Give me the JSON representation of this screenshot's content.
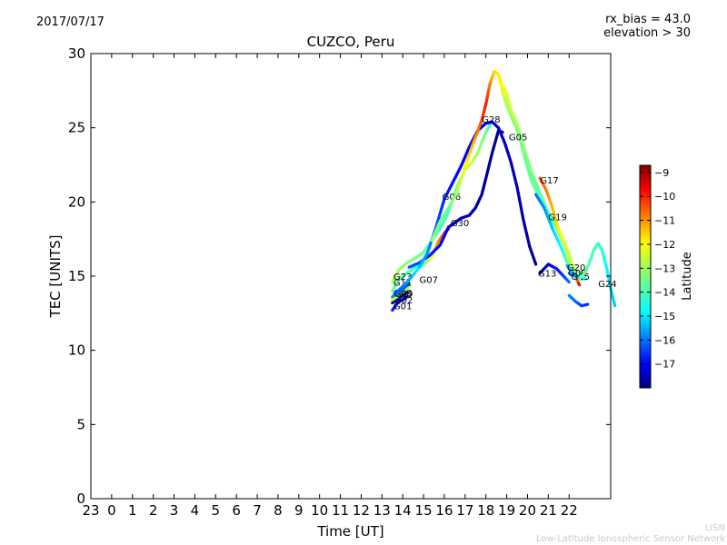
{
  "header": {
    "date": "2017/07/17",
    "rx_bias": "rx_bias = 43.0",
    "elevation": "elevation > 30"
  },
  "footer": {
    "credit_short": "LISN",
    "credit_long": "Low-Latitude Ionospheric Sensor Network"
  },
  "chart_data": {
    "type": "scatter",
    "title": "CUZCO, Peru",
    "xlabel": "Time [UT]",
    "ylabel": "TEC [UNITS]",
    "x_tick_labels": [
      "23",
      "0",
      "1",
      "2",
      "3",
      "4",
      "5",
      "6",
      "7",
      "8",
      "9",
      "10",
      "11",
      "12",
      "13",
      "14",
      "15",
      "16",
      "17",
      "18",
      "19",
      "20",
      "21",
      "22"
    ],
    "xlim": [
      -1,
      24
    ],
    "ylim": [
      0,
      30
    ],
    "y_ticks": [
      0,
      5,
      10,
      15,
      20,
      25,
      30
    ],
    "grid": false,
    "colorbar": {
      "label": "Latitude",
      "range": [
        -18,
        -8.7
      ],
      "ticks": [
        -9,
        -10,
        -11,
        -12,
        -13,
        -14,
        -15,
        -16,
        -17
      ],
      "colormap": "jet"
    },
    "series": [
      {
        "name": "G01",
        "label_x": 13.55,
        "label_y": 13.0,
        "points": [
          [
            13.5,
            12.7
          ],
          [
            13.8,
            13.3
          ],
          [
            14.0,
            13.4
          ],
          [
            14.2,
            13.6
          ]
        ],
        "lats": [
          -16.5,
          -16.8,
          -17.0,
          -17.2
        ]
      },
      {
        "name": "G02",
        "label_x": 13.6,
        "label_y": 13.4,
        "points": [
          [
            13.5,
            13.2
          ],
          [
            13.8,
            13.5
          ],
          [
            14.2,
            13.9
          ]
        ],
        "lats": [
          -17.6,
          -17.7,
          -17.8
        ]
      },
      {
        "name": "G08",
        "label_x": 13.55,
        "label_y": 13.9,
        "points": [
          [
            13.5,
            13.4
          ],
          [
            13.9,
            13.8
          ],
          [
            14.3,
            14.3
          ]
        ],
        "lats": [
          -12.5,
          -12.8,
          -13.0
        ]
      },
      {
        "name": "G09",
        "label_x": 13.6,
        "label_y": 13.85,
        "points": [
          [
            13.5,
            13.6
          ],
          [
            13.9,
            14.0
          ],
          [
            14.3,
            14.5
          ]
        ],
        "lats": [
          -15.5,
          -15.8,
          -16.0
        ]
      },
      {
        "name": "G11",
        "label_x": 13.55,
        "label_y": 14.6,
        "points": [
          [
            13.5,
            14.0
          ],
          [
            13.8,
            14.8
          ],
          [
            14.2,
            15.2
          ],
          [
            14.6,
            15.6
          ],
          [
            15.0,
            15.8
          ]
        ],
        "lats": [
          -13.5,
          -13.7,
          -13.8,
          -14.0,
          -14.2
        ]
      },
      {
        "name": "G23",
        "label_x": 13.55,
        "label_y": 15.0,
        "points": [
          [
            13.5,
            14.6
          ],
          [
            13.8,
            15.4
          ],
          [
            14.2,
            15.9
          ],
          [
            14.6,
            16.2
          ],
          [
            15.0,
            16.6
          ],
          [
            15.4,
            17.4
          ],
          [
            15.8,
            18.2
          ],
          [
            16.2,
            19.3
          ],
          [
            16.6,
            21.0
          ],
          [
            17.0,
            22.2
          ],
          [
            17.3,
            22.6
          ],
          [
            17.6,
            23.3
          ],
          [
            18.0,
            24.7
          ],
          [
            18.2,
            25.2
          ]
        ],
        "lats": [
          -12.8,
          -13.0,
          -13.2,
          -13.4,
          -13.6,
          -13.8,
          -14.0,
          -13.8,
          -13.5,
          -13.0,
          -12.5,
          -13.0,
          -13.5,
          -14.0
        ]
      },
      {
        "name": "G07",
        "label_x": 14.8,
        "label_y": 14.8,
        "points": [
          [
            13.6,
            13.8
          ],
          [
            14.0,
            14.3
          ],
          [
            14.4,
            14.9
          ],
          [
            14.8,
            15.6
          ],
          [
            15.1,
            15.9
          ],
          [
            15.4,
            16.3
          ],
          [
            15.7,
            17.3
          ],
          [
            16.0,
            17.9
          ],
          [
            16.2,
            18.2
          ]
        ],
        "lats": [
          -16.3,
          -15.8,
          -15.2,
          -14.5,
          -13.5,
          -12.3,
          -11.2,
          -10.5,
          -9.5
        ]
      },
      {
        "name": "G30",
        "label_x": 16.3,
        "label_y": 18.6,
        "points": [
          [
            14.3,
            15.6
          ],
          [
            14.8,
            15.9
          ],
          [
            15.3,
            16.4
          ],
          [
            15.8,
            17.1
          ],
          [
            16.2,
            18.3
          ],
          [
            16.5,
            18.6
          ],
          [
            16.8,
            18.9
          ],
          [
            17.2,
            19.1
          ],
          [
            17.5,
            19.6
          ],
          [
            17.8,
            20.5
          ],
          [
            18.0,
            21.6
          ],
          [
            18.3,
            23.3
          ],
          [
            18.6,
            24.8
          ],
          [
            18.8,
            24.7
          ]
        ],
        "lats": [
          -16.0,
          -16.2,
          -16.5,
          -16.8,
          -17.0,
          -17.2,
          -17.4,
          -17.5,
          -17.6,
          -17.7,
          -17.8,
          -17.8,
          -17.9,
          -17.9
        ]
      },
      {
        "name": "G06",
        "label_x": 15.9,
        "label_y": 20.4,
        "points": [
          [
            14.8,
            15.6
          ],
          [
            15.2,
            16.6
          ],
          [
            15.6,
            18.3
          ],
          [
            16.0,
            20.2
          ],
          [
            16.4,
            21.3
          ],
          [
            16.8,
            22.4
          ],
          [
            17.2,
            23.7
          ],
          [
            17.6,
            24.8
          ],
          [
            18.0,
            25.3
          ],
          [
            18.3,
            25.4
          ],
          [
            18.6,
            25.0
          ],
          [
            18.9,
            24.0
          ],
          [
            19.2,
            22.7
          ],
          [
            19.5,
            21.0
          ],
          [
            19.8,
            18.8
          ],
          [
            20.1,
            17.0
          ],
          [
            20.4,
            15.8
          ]
        ],
        "lats": [
          -15.0,
          -15.5,
          -16.0,
          -16.5,
          -16.7,
          -16.8,
          -16.9,
          -17.0,
          -17.1,
          -17.2,
          -17.3,
          -17.3,
          -17.4,
          -17.5,
          -17.6,
          -17.7,
          -17.8
        ]
      },
      {
        "name": "G28",
        "label_x": 17.8,
        "label_y": 25.6,
        "points": [
          [
            15.4,
            17.4
          ],
          [
            15.8,
            18.7
          ],
          [
            16.2,
            19.6
          ],
          [
            16.6,
            20.6
          ],
          [
            17.0,
            22.4
          ],
          [
            17.4,
            24.0
          ],
          [
            17.8,
            25.5
          ],
          [
            18.0,
            26.6
          ],
          [
            18.2,
            28.0
          ],
          [
            18.4,
            28.8
          ],
          [
            18.6,
            28.6
          ],
          [
            18.8,
            27.4
          ],
          [
            19.0,
            26.5
          ],
          [
            19.2,
            25.8
          ],
          [
            19.4,
            25.2
          ],
          [
            19.6,
            24.5
          ],
          [
            19.9,
            22.8
          ],
          [
            20.2,
            21.4
          ],
          [
            20.6,
            20.2
          ],
          [
            21.0,
            19.3
          ],
          [
            21.4,
            18.4
          ],
          [
            21.7,
            17.4
          ],
          [
            22.0,
            16.5
          ]
        ],
        "lats": [
          -13.2,
          -13.4,
          -13.6,
          -13.0,
          -12.2,
          -11.5,
          -10.5,
          -10.0,
          -11.0,
          -11.8,
          -12.0,
          -12.5,
          -13.0,
          -13.2,
          -13.4,
          -13.6,
          -13.6,
          -13.6,
          -13.7,
          -13.8,
          -13.8,
          -13.9,
          -14.0
        ]
      },
      {
        "name": "G05",
        "label_x": 19.1,
        "label_y": 24.4,
        "points": [
          [
            18.6,
            28.6
          ],
          [
            18.8,
            27.8
          ],
          [
            19.0,
            27.3
          ],
          [
            19.2,
            26.2
          ],
          [
            19.4,
            25.6
          ],
          [
            19.6,
            24.8
          ],
          [
            19.9,
            23.3
          ],
          [
            20.2,
            22.0
          ],
          [
            20.6,
            20.6
          ],
          [
            21.0,
            19.2
          ],
          [
            21.4,
            18.2
          ],
          [
            21.8,
            17.0
          ],
          [
            22.1,
            15.8
          ],
          [
            22.4,
            15.3
          ],
          [
            22.7,
            15.2
          ]
        ],
        "lats": [
          -12.0,
          -12.2,
          -12.5,
          -12.7,
          -12.8,
          -13.0,
          -13.2,
          -13.4,
          -13.6,
          -13.8,
          -13.6,
          -13.0,
          -12.6,
          -13.2,
          -13.8
        ]
      },
      {
        "name": "G17",
        "label_x": 20.6,
        "label_y": 21.5,
        "points": [
          [
            20.6,
            21.6
          ],
          [
            20.9,
            20.8
          ],
          [
            21.2,
            19.6
          ],
          [
            21.5,
            18.1
          ],
          [
            21.8,
            17.2
          ],
          [
            22.1,
            16.1
          ]
        ],
        "lats": [
          -10.5,
          -11.0,
          -11.5,
          -12.0,
          -12.5,
          -12.8
        ]
      },
      {
        "name": "G19",
        "label_x": 21.0,
        "label_y": 19.0,
        "points": [
          [
            20.4,
            20.5
          ],
          [
            20.8,
            19.6
          ],
          [
            21.2,
            18.2
          ],
          [
            21.6,
            17.0
          ],
          [
            22.0,
            15.6
          ],
          [
            22.3,
            15.0
          ],
          [
            22.5,
            14.4
          ]
        ],
        "lats": [
          -15.8,
          -15.5,
          -15.0,
          -14.5,
          -13.5,
          -12.0,
          -9.8
        ]
      },
      {
        "name": "G13",
        "label_x": 20.5,
        "label_y": 15.2,
        "points": [
          [
            20.6,
            15.2
          ],
          [
            21.0,
            15.8
          ],
          [
            21.4,
            15.5
          ],
          [
            21.8,
            14.9
          ],
          [
            22.0,
            14.6
          ]
        ],
        "lats": [
          -17.7,
          -17.3,
          -16.8,
          -16.2,
          -15.8
        ]
      },
      {
        "name": "G20",
        "label_x": 21.9,
        "label_y": 15.6,
        "points": [
          [
            21.9,
            15.7
          ],
          [
            22.2,
            15.2
          ],
          [
            22.5,
            14.9
          ],
          [
            22.8,
            14.8
          ]
        ],
        "lats": [
          -15.3,
          -15.0,
          -14.7,
          -14.5
        ]
      },
      {
        "name": "G09",
        "label_x": 21.95,
        "label_y": 15.25,
        "points": [
          [
            22.0,
            15.2
          ],
          [
            22.3,
            15.0
          ],
          [
            22.6,
            14.8
          ]
        ],
        "lats": [
          -15.5,
          -15.3,
          -15.0
        ]
      },
      {
        "name": "G15",
        "label_x": 22.1,
        "label_y": 15.0,
        "points": [
          [
            22.0,
            13.7
          ],
          [
            22.3,
            13.3
          ],
          [
            22.6,
            13.0
          ],
          [
            22.9,
            13.1
          ]
        ],
        "lats": [
          -15.6,
          -15.8,
          -16.2,
          -16.4
        ]
      },
      {
        "name": "G24",
        "label_x": 23.4,
        "label_y": 14.5,
        "points": [
          [
            22.5,
            14.8
          ],
          [
            22.8,
            15.3
          ],
          [
            23.0,
            16.0
          ],
          [
            23.2,
            16.8
          ],
          [
            23.4,
            17.2
          ],
          [
            23.6,
            16.7
          ],
          [
            23.8,
            15.6
          ],
          [
            24.0,
            14.2
          ],
          [
            24.2,
            13.0
          ]
        ],
        "lats": [
          -13.5,
          -13.6,
          -13.8,
          -13.9,
          -14.0,
          -14.2,
          -14.5,
          -14.8,
          -15.0
        ]
      }
    ]
  }
}
